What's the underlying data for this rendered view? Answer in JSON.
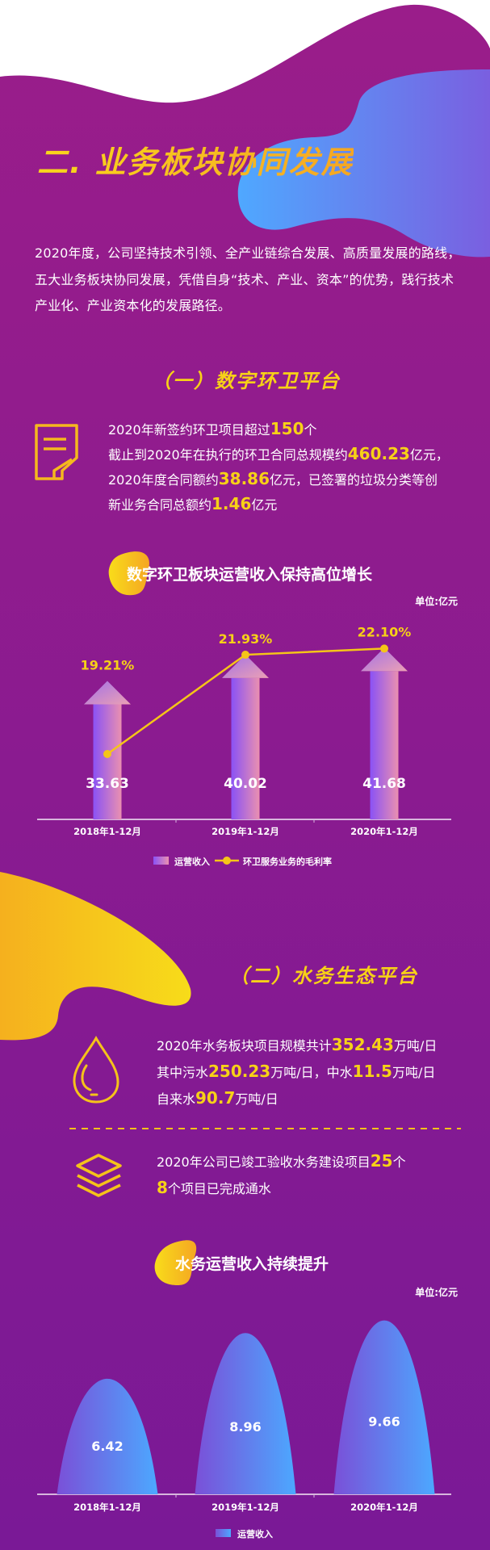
{
  "colors": {
    "bg_top": "#9a1d8a",
    "bg_bottom": "#7a1996",
    "accent": "#f7d117",
    "blue": "#4ca8ff",
    "violet": "#8a52f5"
  },
  "title": "二. 业务板块协同发展",
  "intro": [
    "2020年度，公司坚持技术引领、全产业链综合发展、高质量发展的路线，",
    "五大业务板块协同发展，凭借自身“技术、产业、资本”的优势，践行技术",
    "产业化、产业资本化的发展路径。"
  ],
  "section1": {
    "heading": "（一）数字环卫平台",
    "icon": "document-icon",
    "lines": [
      [
        {
          "t": "2020年新签约环卫项目超过"
        },
        {
          "t": "150",
          "hl": true
        },
        {
          "t": "个"
        }
      ],
      [
        {
          "t": "截止到2020年在执行的环卫合同总规模约"
        },
        {
          "t": "460.23",
          "hl": true
        },
        {
          "t": "亿元，"
        }
      ],
      [
        {
          "t": "2020年度合同额约"
        },
        {
          "t": "38.86",
          "hl": true
        },
        {
          "t": "亿元，已签署的垃圾分类等创"
        }
      ],
      [
        {
          "t": "新业务合同总额约"
        },
        {
          "t": "1.46",
          "hl": true
        },
        {
          "t": "亿元"
        }
      ]
    ]
  },
  "section2": {
    "heading": "（二）水务生态平台",
    "block1": {
      "icon": "water-drop-icon",
      "lines": [
        [
          {
            "t": "2020年水务板块项目规模共计"
          },
          {
            "t": "352.43",
            "hl": true
          },
          {
            "t": "万吨/日"
          }
        ],
        [
          {
            "t": "其中污水"
          },
          {
            "t": "250.23",
            "hl": true
          },
          {
            "t": "万吨/日，中水"
          },
          {
            "t": "11.5",
            "hl": true
          },
          {
            "t": "万吨/日"
          }
        ],
        [
          {
            "t": "自来水"
          },
          {
            "t": "90.7",
            "hl": true
          },
          {
            "t": "万吨/日"
          }
        ]
      ]
    },
    "block2": {
      "icon": "layers-icon",
      "lines": [
        [
          {
            "t": "2020年公司已竣工验收水务建设项目"
          },
          {
            "t": "25",
            "hl": true
          },
          {
            "t": "个"
          }
        ],
        [
          {
            "t": "8",
            "hl": true
          },
          {
            "t": "个项目已完成通水"
          }
        ]
      ]
    }
  },
  "chart_data": [
    {
      "type": "bar+line",
      "title": "数字环卫板块运营收入保持高位增长",
      "unit": "单位:亿元",
      "categories": [
        "2018年1-12月",
        "2019年1-12月",
        "2020年1-12月"
      ],
      "series": [
        {
          "name": "运营收入",
          "type": "bar",
          "values": [
            33.63,
            40.02,
            41.68
          ],
          "labels": [
            "33.63",
            "40.02",
            "41.68"
          ]
        },
        {
          "name": "环卫服务业务的毛利率",
          "type": "line",
          "values": [
            19.21,
            21.93,
            22.1
          ],
          "labels": [
            "19.21%",
            "21.93%",
            "22.10%"
          ]
        }
      ],
      "legend": "bottom",
      "grid": false
    },
    {
      "type": "bar",
      "title": "水务运营收入持续提升",
      "unit": "单位:亿元",
      "categories": [
        "2018年1-12月",
        "2019年1-12月",
        "2020年1-12月"
      ],
      "series": [
        {
          "name": "运营收入",
          "values": [
            6.42,
            8.96,
            9.66
          ],
          "labels": [
            "6.42",
            "8.96",
            "9.66"
          ]
        }
      ],
      "legend": "bottom",
      "grid": false
    }
  ]
}
